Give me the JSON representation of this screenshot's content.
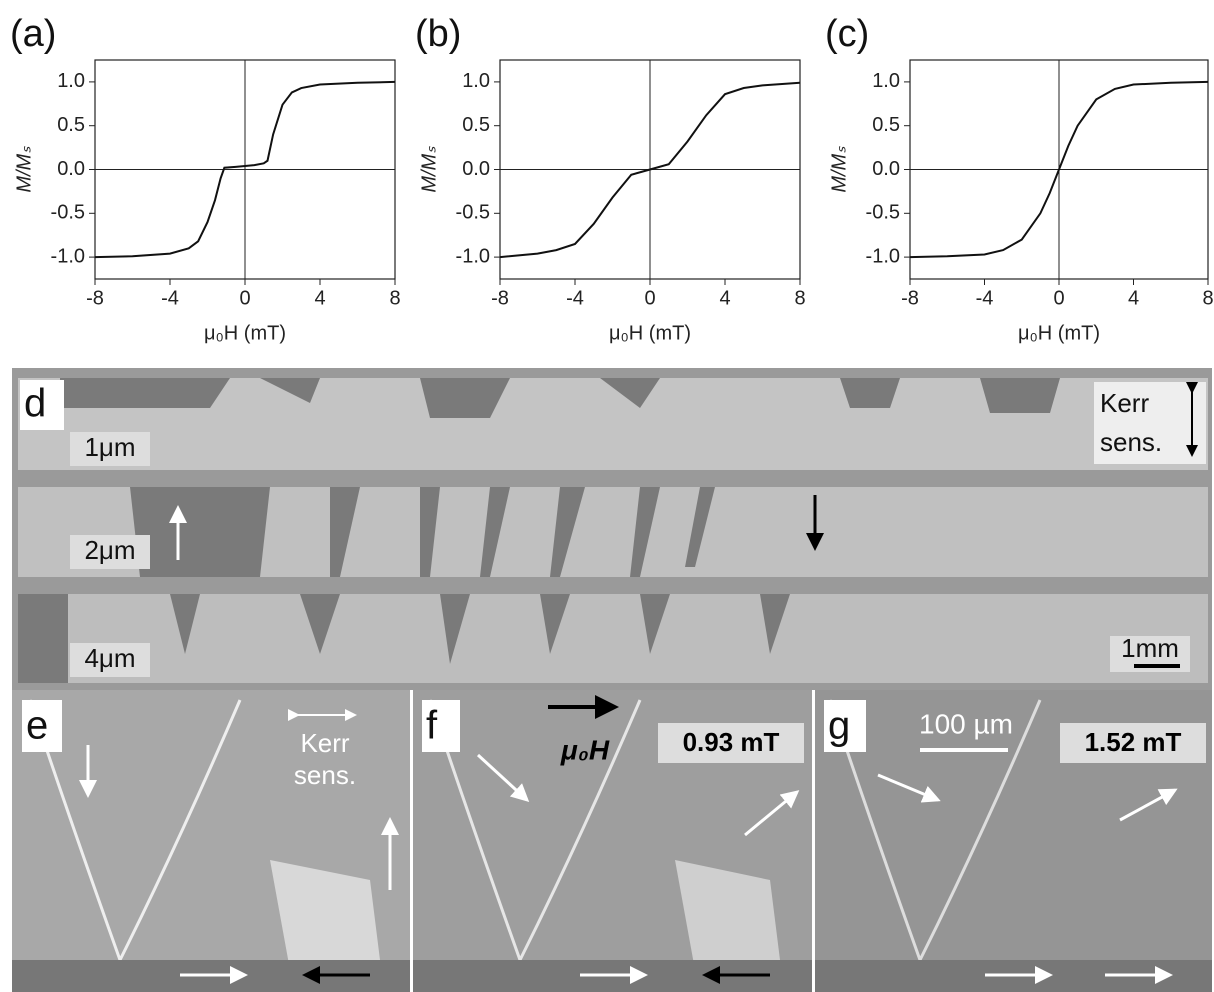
{
  "chart_data": [
    {
      "type": "line",
      "title": "(a)",
      "x_label": "μ₀H (mT)",
      "y_label": "M/Mₛ",
      "color": "#111111",
      "x": [
        -8,
        -6,
        -4,
        -3,
        -2.5,
        -2,
        -1.6,
        -1.3,
        -1.1,
        -0.5,
        0,
        0.5,
        1,
        1.2,
        1.5,
        2,
        2.5,
        3,
        4,
        6,
        8
      ],
      "values": [
        -1.0,
        -0.99,
        -0.96,
        -0.9,
        -0.82,
        -0.6,
        -0.35,
        -0.1,
        0.02,
        0.03,
        0.04,
        0.05,
        0.07,
        0.1,
        0.4,
        0.74,
        0.88,
        0.93,
        0.97,
        0.99,
        1.0
      ],
      "xlim": [
        -8,
        8
      ],
      "ylim": [
        -1.25,
        1.25
      ],
      "xticks": [
        -8,
        -4,
        0,
        4,
        8
      ],
      "yticks": [
        {
          "value": -1,
          "label": "-1.0"
        },
        -0.5,
        {
          "value": 0,
          "label": "0.0"
        },
        0.5,
        {
          "value": 1,
          "label": "1.0"
        }
      ]
    },
    {
      "type": "line",
      "title": "(b)",
      "x_label": "μ₀H (mT)",
      "y_label": "M/Mₛ",
      "color": "#111111",
      "x": [
        -8,
        -6,
        -5,
        -4,
        -3,
        -2,
        -1,
        0,
        1,
        2,
        3,
        4,
        5,
        6,
        8
      ],
      "values": [
        -1.0,
        -0.96,
        -0.92,
        -0.85,
        -0.62,
        -0.32,
        -0.06,
        0.0,
        0.06,
        0.32,
        0.62,
        0.86,
        0.93,
        0.96,
        0.99
      ],
      "xlim": [
        -8,
        8
      ],
      "ylim": [
        -1.25,
        1.25
      ],
      "xticks": [
        -8,
        -4,
        0,
        4,
        8
      ],
      "yticks": [
        {
          "value": -1,
          "label": "-1.0"
        },
        -0.5,
        {
          "value": 0,
          "label": "0.0"
        },
        0.5,
        {
          "value": 1,
          "label": "1.0"
        }
      ]
    },
    {
      "type": "line",
      "title": "(c)",
      "x_label": "μ₀H (mT)",
      "y_label": "M/Mₛ",
      "color": "#111111",
      "x": [
        -8,
        -6,
        -4,
        -3,
        -2,
        -1,
        -0.5,
        0,
        0.5,
        1,
        2,
        3,
        4,
        6,
        8
      ],
      "values": [
        -1.0,
        -0.99,
        -0.97,
        -0.92,
        -0.8,
        -0.5,
        -0.27,
        0.0,
        0.27,
        0.5,
        0.8,
        0.92,
        0.97,
        0.99,
        1.0
      ],
      "xlim": [
        -8,
        8
      ],
      "ylim": [
        -1.25,
        1.25
      ],
      "xticks": [
        -8,
        -4,
        0,
        4,
        8
      ],
      "yticks": [
        {
          "value": -1,
          "label": "-1.0"
        },
        -0.5,
        {
          "value": 0,
          "label": "0.0"
        },
        0.5,
        {
          "value": 1,
          "label": "1.0"
        }
      ]
    }
  ],
  "panels": {
    "d": {
      "label": "d",
      "strips": [
        "1μm",
        "2μm",
        "4μm"
      ],
      "kerr": [
        "Kerr",
        "sens."
      ],
      "scale": "1mm"
    },
    "e": {
      "label": "e",
      "kerr": [
        "Kerr",
        "sens."
      ]
    },
    "f": {
      "label": "f",
      "field": "0.93 mT",
      "field_label": "μ₀H"
    },
    "g": {
      "label": "g",
      "field": "1.52 mT",
      "scale": "100 µm"
    }
  }
}
